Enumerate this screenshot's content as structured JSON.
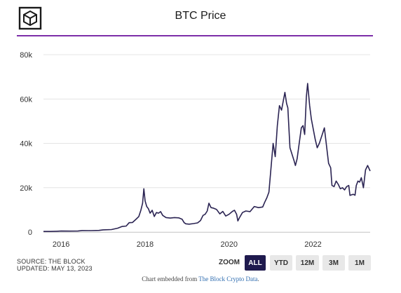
{
  "header": {
    "title": "BTC Price",
    "logo_icon": "the-block-cube-logo"
  },
  "colors": {
    "accent_rule": "#7c2ea8",
    "line": "#2a2352",
    "zoom_active_bg": "#1f1a4e",
    "zoom_inactive_bg": "#e8e8e8",
    "link": "#2f6db0"
  },
  "chart_data": {
    "type": "line",
    "title": "BTC Price",
    "xlabel": "",
    "ylabel": "",
    "xlim": [
      2015.58,
      2023.36
    ],
    "ylim": [
      0,
      80000
    ],
    "yticks": [
      0,
      20000,
      40000,
      60000,
      80000
    ],
    "ytick_labels": [
      "0",
      "20k",
      "40k",
      "60k",
      "80k"
    ],
    "xticks": [
      2016,
      2018,
      2020,
      2022
    ],
    "xtick_labels": [
      "2016",
      "2018",
      "2020",
      "2022"
    ],
    "grid": "horizontal",
    "legend": "none",
    "series": [
      {
        "x": [
          2015.58,
          2015.75,
          2015.9,
          2016.0,
          2016.2,
          2016.4,
          2016.5,
          2016.7,
          2016.9,
          2017.0,
          2017.2,
          2017.35,
          2017.45,
          2017.55,
          2017.62,
          2017.7,
          2017.78,
          2017.85,
          2017.9,
          2017.94,
          2017.97,
          2018.0,
          2018.04,
          2018.08,
          2018.12,
          2018.17,
          2018.22,
          2018.27,
          2018.32,
          2018.37,
          2018.42,
          2018.5,
          2018.6,
          2018.7,
          2018.8,
          2018.88,
          2018.93,
          2018.97,
          2019.05,
          2019.15,
          2019.25,
          2019.32,
          2019.38,
          2019.43,
          2019.48,
          2019.52,
          2019.57,
          2019.62,
          2019.7,
          2019.78,
          2019.85,
          2019.92,
          2020.0,
          2020.08,
          2020.13,
          2020.18,
          2020.21,
          2020.25,
          2020.32,
          2020.4,
          2020.5,
          2020.6,
          2020.7,
          2020.8,
          2020.85,
          2020.9,
          2020.95,
          2021.0,
          2021.05,
          2021.1,
          2021.15,
          2021.2,
          2021.25,
          2021.29,
          2021.33,
          2021.37,
          2021.4,
          2021.45,
          2021.5,
          2021.55,
          2021.58,
          2021.62,
          2021.67,
          2021.72,
          2021.76,
          2021.8,
          2021.84,
          2021.87,
          2021.92,
          2021.96,
          2022.0,
          2022.05,
          2022.1,
          2022.15,
          2022.22,
          2022.27,
          2022.32,
          2022.37,
          2022.42,
          2022.45,
          2022.5,
          2022.55,
          2022.6,
          2022.65,
          2022.7,
          2022.75,
          2022.8,
          2022.85,
          2022.88,
          2022.92,
          2022.96,
          2023.0,
          2023.03,
          2023.07,
          2023.11,
          2023.15,
          2023.2,
          2023.25,
          2023.3,
          2023.36
        ],
        "values": [
          250,
          240,
          350,
          430,
          420,
          450,
          670,
          620,
          720,
          990,
          1100,
          1750,
          2500,
          2700,
          4200,
          4300,
          5700,
          7000,
          9900,
          13000,
          19500,
          14000,
          11500,
          10500,
          8500,
          9800,
          7000,
          8800,
          8500,
          9200,
          7500,
          6500,
          6300,
          6500,
          6400,
          5800,
          4200,
          3700,
          3550,
          3800,
          4100,
          5200,
          7500,
          8000,
          9500,
          13000,
          11000,
          10800,
          10200,
          8200,
          9300,
          7200,
          8000,
          9300,
          9800,
          8000,
          5000,
          6500,
          8800,
          9500,
          9200,
          11500,
          11000,
          11300,
          13500,
          15500,
          18000,
          29000,
          40000,
          34000,
          48000,
          57000,
          55000,
          59000,
          63000,
          58000,
          56000,
          38000,
          35000,
          32000,
          30000,
          33000,
          40000,
          47000,
          48000,
          44000,
          61000,
          67000,
          57000,
          51000,
          47000,
          42000,
          38000,
          40000,
          44000,
          47000,
          39000,
          31000,
          29000,
          21000,
          20500,
          23000,
          21500,
          19500,
          20000,
          19000,
          20500,
          21000,
          16500,
          16800,
          17000,
          16600,
          21000,
          23000,
          22500,
          24500,
          20000,
          28000,
          30000,
          27500
        ]
      }
    ]
  },
  "footer": {
    "source_line": "SOURCE: THE BLOCK",
    "updated_line": "UPDATED: MAY 13, 2023",
    "zoom_label": "ZOOM",
    "zoom_buttons": [
      "ALL",
      "YTD",
      "12M",
      "3M",
      "1M"
    ],
    "zoom_selected": "ALL",
    "embed_prefix": "Chart embedded from",
    "embed_link_text": "The Block Crypto Data",
    "embed_suffix": "."
  }
}
